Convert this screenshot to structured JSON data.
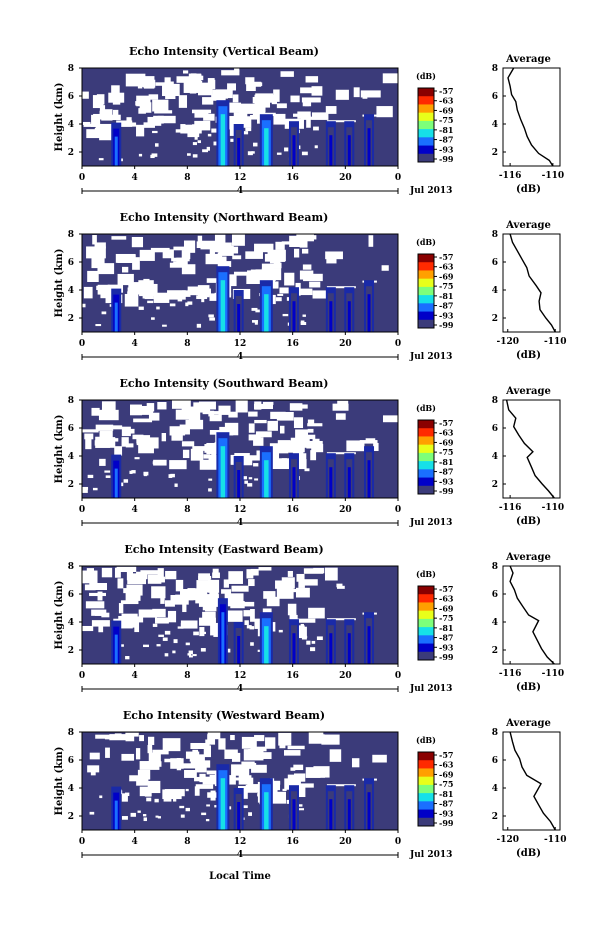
{
  "figure": {
    "xlabel": "Local Time",
    "date_label": "Jul 2013",
    "day_marker": "4",
    "avg_title": "Average",
    "avg_xlabel": "(dB)",
    "colorbar_unit": "(dB)"
  },
  "chart_data": [
    {
      "type": "heatmap",
      "title": "Echo Intensity (Vertical Beam)",
      "ylabel": "Height (km)",
      "x_ticks": [
        "0",
        "4",
        "8",
        "12",
        "16",
        "20",
        "0"
      ],
      "y_ticks": [
        "2",
        "4",
        "6",
        "8"
      ],
      "xlim": [
        0,
        24
      ],
      "ylim": [
        1,
        8
      ],
      "colorbar": {
        "ticks": [
          "-57",
          "-63",
          "-69",
          "-75",
          "-81",
          "-87",
          "-93",
          "-99"
        ],
        "colors": [
          "#8a0000",
          "#ff2a00",
          "#ffa000",
          "#e8ff1a",
          "#7dff7a",
          "#16e0e8",
          "#1a6fff",
          "#0000c8",
          "#3b3b7a"
        ]
      },
      "columns": [
        {
          "x": 2.6,
          "top": 4.1,
          "peak": -87
        },
        {
          "x": 10.7,
          "top": 5.7,
          "peak": -84
        },
        {
          "x": 11.9,
          "top": 4.0,
          "peak": -94
        },
        {
          "x": 14.0,
          "top": 4.7,
          "peak": -82
        },
        {
          "x": 16.1,
          "top": 4.2,
          "peak": -93
        },
        {
          "x": 18.9,
          "top": 4.2,
          "peak": -95
        },
        {
          "x": 20.3,
          "top": 4.2,
          "peak": -95
        },
        {
          "x": 21.8,
          "top": 4.7,
          "peak": -94
        }
      ],
      "average": {
        "xlim": [
          -117,
          -109
        ],
        "x_ticks": [
          "-116",
          "-110"
        ],
        "y_ticks": [
          "2",
          "4",
          "6",
          "8"
        ],
        "profile": [
          [
            -110,
            1
          ],
          [
            -110.5,
            1.4
          ],
          [
            -112,
            1.9
          ],
          [
            -113,
            2.5
          ],
          [
            -113.6,
            3.1
          ],
          [
            -114,
            3.7
          ],
          [
            -114.5,
            4.3
          ],
          [
            -115,
            5
          ],
          [
            -115.2,
            5.6
          ],
          [
            -115.8,
            6.1
          ],
          [
            -116,
            6.7
          ],
          [
            -116.3,
            7.3
          ],
          [
            -115.5,
            8
          ]
        ]
      }
    },
    {
      "type": "heatmap",
      "title": "Echo Intensity (Northward Beam)",
      "ylabel": "Height (km)",
      "x_ticks": [
        "0",
        "4",
        "8",
        "12",
        "16",
        "20",
        "0"
      ],
      "y_ticks": [
        "2",
        "4",
        "6",
        "8"
      ],
      "xlim": [
        0,
        24
      ],
      "ylim": [
        1,
        8
      ],
      "colorbar": {
        "ticks": [
          "-57",
          "-63",
          "-69",
          "-75",
          "-81",
          "-87",
          "-93",
          "-99"
        ],
        "colors": [
          "#8a0000",
          "#ff2a00",
          "#ffa000",
          "#e8ff1a",
          "#7dff7a",
          "#16e0e8",
          "#1a6fff",
          "#0000c8",
          "#3b3b7a"
        ]
      },
      "columns": [
        {
          "x": 2.6,
          "top": 4.1,
          "peak": -86
        },
        {
          "x": 10.7,
          "top": 5.7,
          "peak": -85
        },
        {
          "x": 11.9,
          "top": 4.0,
          "peak": -94
        },
        {
          "x": 14.0,
          "top": 4.7,
          "peak": -82
        },
        {
          "x": 16.1,
          "top": 4.2,
          "peak": -93
        },
        {
          "x": 18.9,
          "top": 4.2,
          "peak": -95
        },
        {
          "x": 20.3,
          "top": 4.2,
          "peak": -95
        },
        {
          "x": 21.8,
          "top": 4.7,
          "peak": -94
        }
      ],
      "average": {
        "xlim": [
          -121,
          -109
        ],
        "x_ticks": [
          "-120",
          "-110"
        ],
        "y_ticks": [
          "2",
          "4",
          "6",
          "8"
        ],
        "profile": [
          [
            -110,
            1
          ],
          [
            -110.8,
            1.5
          ],
          [
            -112,
            2
          ],
          [
            -113.2,
            2.6
          ],
          [
            -113.4,
            3.2
          ],
          [
            -113,
            3.8
          ],
          [
            -114,
            4.3
          ],
          [
            -115.5,
            5
          ],
          [
            -116,
            5.6
          ],
          [
            -117,
            6.2
          ],
          [
            -118,
            6.8
          ],
          [
            -119,
            7.4
          ],
          [
            -119.5,
            8
          ]
        ]
      }
    },
    {
      "type": "heatmap",
      "title": "Echo Intensity (Southward Beam)",
      "ylabel": "Height (km)",
      "x_ticks": [
        "0",
        "4",
        "8",
        "12",
        "16",
        "20",
        "0"
      ],
      "y_ticks": [
        "2",
        "4",
        "6",
        "8"
      ],
      "xlim": [
        0,
        24
      ],
      "ylim": [
        1,
        8
      ],
      "colorbar": {
        "ticks": [
          "-57",
          "-63",
          "-69",
          "-75",
          "-81",
          "-87",
          "-93",
          "-99"
        ],
        "colors": [
          "#8a0000",
          "#ff2a00",
          "#ffa000",
          "#e8ff1a",
          "#7dff7a",
          "#16e0e8",
          "#1a6fff",
          "#0000c8",
          "#3b3b7a"
        ]
      },
      "columns": [
        {
          "x": 2.6,
          "top": 4.1,
          "peak": -87
        },
        {
          "x": 10.7,
          "top": 5.7,
          "peak": -85
        },
        {
          "x": 11.9,
          "top": 4.0,
          "peak": -94
        },
        {
          "x": 14.0,
          "top": 4.7,
          "peak": -83
        },
        {
          "x": 16.1,
          "top": 4.2,
          "peak": -93
        },
        {
          "x": 18.9,
          "top": 4.2,
          "peak": -95
        },
        {
          "x": 20.3,
          "top": 4.2,
          "peak": -95
        },
        {
          "x": 21.8,
          "top": 4.7,
          "peak": -94
        }
      ],
      "average": {
        "xlim": [
          -117,
          -109
        ],
        "x_ticks": [
          "-116",
          "-110"
        ],
        "y_ticks": [
          "2",
          "4",
          "6",
          "8"
        ],
        "profile": [
          [
            -109.8,
            1
          ],
          [
            -110.6,
            1.5
          ],
          [
            -111.5,
            2
          ],
          [
            -112.5,
            2.6
          ],
          [
            -113,
            3.2
          ],
          [
            -113.6,
            3.9
          ],
          [
            -112.8,
            4.3
          ],
          [
            -114,
            4.9
          ],
          [
            -114.8,
            5.5
          ],
          [
            -115.5,
            6.1
          ],
          [
            -115.2,
            6.7
          ],
          [
            -116.2,
            7.3
          ],
          [
            -116.5,
            8
          ]
        ]
      }
    },
    {
      "type": "heatmap",
      "title": "Echo Intensity (Eastward Beam)",
      "ylabel": "Height (km)",
      "x_ticks": [
        "0",
        "4",
        "8",
        "12",
        "16",
        "20",
        "0"
      ],
      "y_ticks": [
        "2",
        "4",
        "6",
        "8"
      ],
      "xlim": [
        0,
        24
      ],
      "ylim": [
        1,
        8
      ],
      "colorbar": {
        "ticks": [
          "-57",
          "-63",
          "-69",
          "-75",
          "-81",
          "-87",
          "-93",
          "-99"
        ],
        "colors": [
          "#8a0000",
          "#ff2a00",
          "#ffa000",
          "#e8ff1a",
          "#7dff7a",
          "#16e0e8",
          "#1a6fff",
          "#0000c8",
          "#3b3b7a"
        ]
      },
      "columns": [
        {
          "x": 2.6,
          "top": 4.1,
          "peak": -90
        },
        {
          "x": 10.7,
          "top": 5.7,
          "peak": -86
        },
        {
          "x": 11.9,
          "top": 4.0,
          "peak": -94
        },
        {
          "x": 14.0,
          "top": 4.7,
          "peak": -84
        },
        {
          "x": 16.1,
          "top": 4.2,
          "peak": -94
        },
        {
          "x": 18.9,
          "top": 4.2,
          "peak": -96
        },
        {
          "x": 20.3,
          "top": 4.2,
          "peak": -96
        },
        {
          "x": 21.8,
          "top": 4.7,
          "peak": -95
        }
      ],
      "average": {
        "xlim": [
          -117,
          -109
        ],
        "x_ticks": [
          "-116",
          "-110"
        ],
        "y_ticks": [
          "2",
          "4",
          "6",
          "8"
        ],
        "profile": [
          [
            -109.8,
            1
          ],
          [
            -110.8,
            1.5
          ],
          [
            -111.6,
            2.1
          ],
          [
            -112.2,
            2.7
          ],
          [
            -112.8,
            3.3
          ],
          [
            -112,
            4.1
          ],
          [
            -113.4,
            4.5
          ],
          [
            -114.2,
            5.1
          ],
          [
            -115,
            5.7
          ],
          [
            -115.4,
            6.3
          ],
          [
            -116,
            6.9
          ],
          [
            -115.6,
            7.5
          ],
          [
            -116,
            8
          ]
        ]
      }
    },
    {
      "type": "heatmap",
      "title": "Echo Intensity (Westward Beam)",
      "ylabel": "Height (km)",
      "x_ticks": [
        "0",
        "4",
        "8",
        "12",
        "16",
        "20",
        "0"
      ],
      "y_ticks": [
        "2",
        "4",
        "6",
        "8"
      ],
      "xlim": [
        0,
        24
      ],
      "ylim": [
        1,
        8
      ],
      "colorbar": {
        "ticks": [
          "-57",
          "-63",
          "-69",
          "-75",
          "-81",
          "-87",
          "-93",
          "-99"
        ],
        "colors": [
          "#8a0000",
          "#ff2a00",
          "#ffa000",
          "#e8ff1a",
          "#7dff7a",
          "#16e0e8",
          "#1a6fff",
          "#0000c8",
          "#3b3b7a"
        ]
      },
      "columns": [
        {
          "x": 2.6,
          "top": 4.1,
          "peak": -90
        },
        {
          "x": 10.7,
          "top": 5.7,
          "peak": -85
        },
        {
          "x": 11.9,
          "top": 4.0,
          "peak": -94
        },
        {
          "x": 14.0,
          "top": 4.7,
          "peak": -83
        },
        {
          "x": 16.1,
          "top": 4.2,
          "peak": -93
        },
        {
          "x": 18.9,
          "top": 4.2,
          "peak": -95
        },
        {
          "x": 20.3,
          "top": 4.2,
          "peak": -95
        },
        {
          "x": 21.8,
          "top": 4.7,
          "peak": -94
        }
      ],
      "average": {
        "xlim": [
          -121,
          -109
        ],
        "x_ticks": [
          "-120",
          "-110"
        ],
        "y_ticks": [
          "2",
          "4",
          "6",
          "8"
        ],
        "profile": [
          [
            -110,
            1
          ],
          [
            -111,
            1.6
          ],
          [
            -112.5,
            2.2
          ],
          [
            -113.5,
            2.8
          ],
          [
            -114.5,
            3.4
          ],
          [
            -113,
            4.3
          ],
          [
            -116,
            4.9
          ],
          [
            -117,
            5.5
          ],
          [
            -117.5,
            6.1
          ],
          [
            -118.5,
            6.7
          ],
          [
            -119,
            7.3
          ],
          [
            -119.5,
            8
          ]
        ]
      }
    }
  ]
}
